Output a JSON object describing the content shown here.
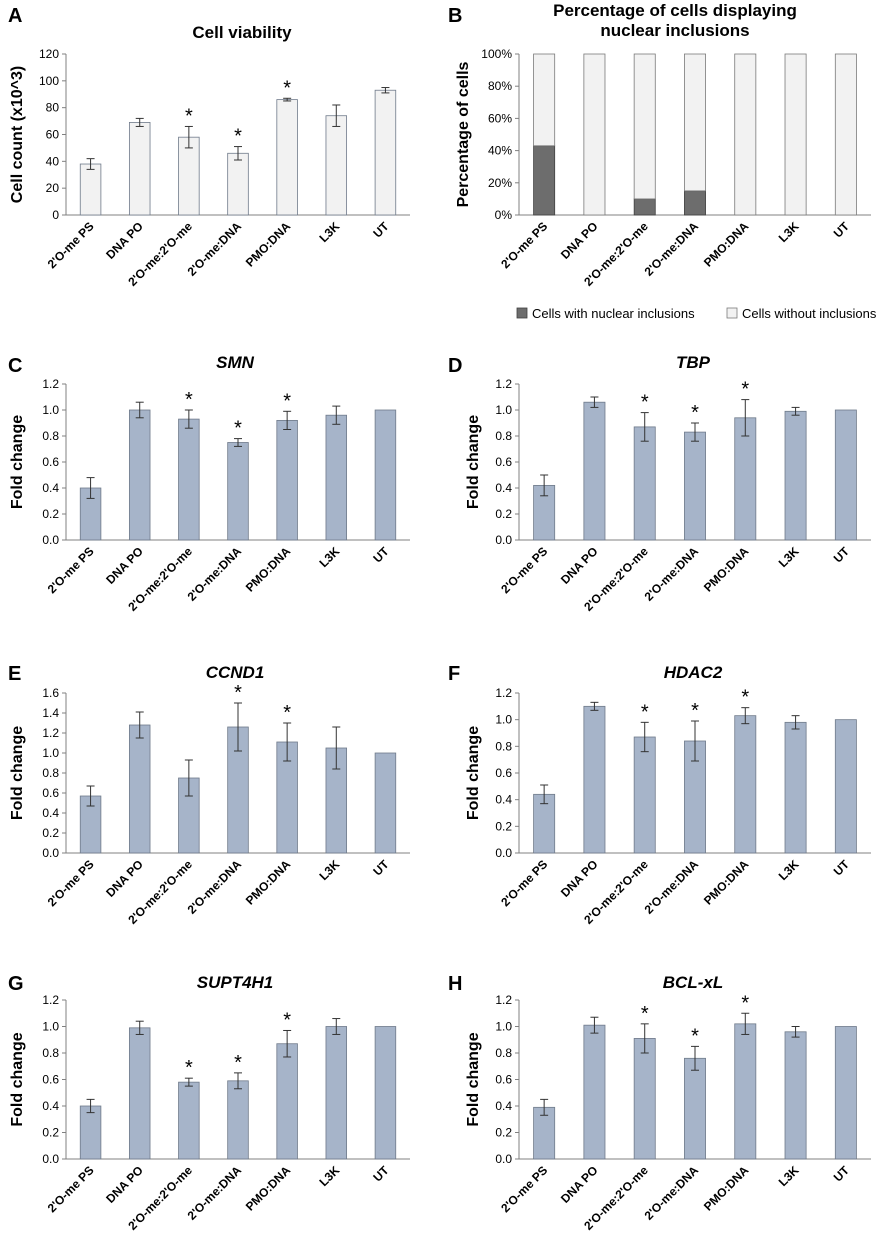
{
  "colors": {
    "bar_light": "#f2f2f2",
    "bar_blue": "#a6b4c9",
    "inclusion_dark": "#6d6d6d",
    "axis": "#808080"
  },
  "chart_data": [
    {
      "id": "A",
      "panel_label": "A",
      "type": "bar",
      "title": "Cell viability",
      "title_italic": false,
      "ylabel": "Cell count (x10^3)",
      "ylim": [
        0,
        120
      ],
      "yticks": [
        "0",
        "20",
        "40",
        "60",
        "80",
        "100",
        "120"
      ],
      "categories": [
        "2'O-me PS",
        "DNA PO",
        "2'O-me:2'O-me",
        "2'O-me:DNA",
        "PMO:DNA",
        "L3K",
        "UT"
      ],
      "values": [
        38,
        69,
        58,
        46,
        86,
        74,
        93
      ],
      "errors": [
        4,
        3,
        8,
        5,
        1,
        8,
        2
      ],
      "significant": [
        false,
        false,
        true,
        true,
        true,
        false,
        false
      ],
      "significance_marker": "*"
    },
    {
      "id": "B",
      "panel_label": "B",
      "type": "stacked-bar",
      "title": "Percentage of cells displaying nuclear inclusions",
      "title_lines": [
        "Percentage of cells displaying",
        "nuclear inclusions"
      ],
      "ylabel": "Percentage of cells",
      "ylim": [
        0,
        100
      ],
      "yticks": [
        "0%",
        "20%",
        "40%",
        "60%",
        "80%",
        "100%"
      ],
      "categories": [
        "2'O-me PS",
        "DNA PO",
        "2'O-me:2'O-me",
        "2'O-me:DNA",
        "PMO:DNA",
        "L3K",
        "UT"
      ],
      "series": [
        {
          "name": "Cells with nuclear inclusions",
          "values": [
            43,
            0,
            10,
            15,
            0,
            0,
            0
          ]
        },
        {
          "name": "Cells without inclusions",
          "values": [
            57,
            100,
            90,
            85,
            100,
            100,
            100
          ]
        }
      ],
      "legend": [
        "Cells with nuclear inclusions",
        "Cells without inclusions"
      ],
      "legend_position": "bottom"
    },
    {
      "id": "C",
      "panel_label": "C",
      "type": "bar",
      "title": "SMN",
      "title_italic": true,
      "ylabel": "Fold change",
      "ylim": [
        0,
        1.2
      ],
      "yticks": [
        "0.0",
        "0.2",
        "0.4",
        "0.6",
        "0.8",
        "1.0",
        "1.2"
      ],
      "categories": [
        "2'O-me PS",
        "DNA PO",
        "2'O-me:2'O-me",
        "2'O-me:DNA",
        "PMO:DNA",
        "L3K",
        "UT"
      ],
      "values": [
        0.4,
        1.0,
        0.93,
        0.75,
        0.92,
        0.96,
        1.0
      ],
      "errors": [
        0.08,
        0.06,
        0.07,
        0.03,
        0.07,
        0.07,
        0
      ],
      "significant": [
        false,
        false,
        true,
        true,
        true,
        false,
        false
      ],
      "significance_marker": "*"
    },
    {
      "id": "D",
      "panel_label": "D",
      "type": "bar",
      "title": "TBP",
      "title_italic": true,
      "ylabel": "Fold change",
      "ylim": [
        0,
        1.2
      ],
      "yticks": [
        "0.0",
        "0.2",
        "0.4",
        "0.6",
        "0.8",
        "1.0",
        "1.2"
      ],
      "categories": [
        "2'O-me PS",
        "DNA PO",
        "2'O-me:2'O-me",
        "2'O-me:DNA",
        "PMO:DNA",
        "L3K",
        "UT"
      ],
      "values": [
        0.42,
        1.06,
        0.87,
        0.83,
        0.94,
        0.99,
        1.0
      ],
      "errors": [
        0.08,
        0.04,
        0.11,
        0.07,
        0.14,
        0.03,
        0
      ],
      "significant": [
        false,
        false,
        true,
        true,
        true,
        false,
        false
      ],
      "significance_marker": "*"
    },
    {
      "id": "E",
      "panel_label": "E",
      "type": "bar",
      "title": "CCND1",
      "title_italic": true,
      "ylabel": "Fold change",
      "ylim": [
        0,
        1.6
      ],
      "yticks": [
        "0.0",
        "0.2",
        "0.4",
        "0.6",
        "0.8",
        "1.0",
        "1.2",
        "1.4",
        "1.6"
      ],
      "categories": [
        "2'O-me PS",
        "DNA PO",
        "2'O-me:2'O-me",
        "2'O-me:DNA",
        "PMO:DNA",
        "L3K",
        "UT"
      ],
      "values": [
        0.57,
        1.28,
        0.75,
        1.26,
        1.11,
        1.05,
        1.0
      ],
      "errors": [
        0.1,
        0.13,
        0.18,
        0.24,
        0.19,
        0.21,
        0
      ],
      "significant": [
        false,
        false,
        false,
        true,
        true,
        false,
        false
      ],
      "significance_marker": "*"
    },
    {
      "id": "F",
      "panel_label": "F",
      "type": "bar",
      "title": "HDAC2",
      "title_italic": true,
      "ylabel": "Fold change",
      "ylim": [
        0,
        1.2
      ],
      "yticks": [
        "0.0",
        "0.2",
        "0.4",
        "0.6",
        "0.8",
        "1.0",
        "1.2"
      ],
      "categories": [
        "2'O-me PS",
        "DNA PO",
        "2'O-me:2'O-me",
        "2'O-me:DNA",
        "PMO:DNA",
        "L3K",
        "UT"
      ],
      "values": [
        0.44,
        1.1,
        0.87,
        0.84,
        1.03,
        0.98,
        1.0
      ],
      "errors": [
        0.07,
        0.03,
        0.11,
        0.15,
        0.06,
        0.05,
        0
      ],
      "significant": [
        false,
        false,
        true,
        true,
        true,
        false,
        false
      ],
      "significance_marker": "*"
    },
    {
      "id": "G",
      "panel_label": "G",
      "type": "bar",
      "title": "SUPT4H1",
      "title_italic": true,
      "ylabel": "Fold change",
      "ylim": [
        0,
        1.2
      ],
      "yticks": [
        "0.0",
        "0.2",
        "0.4",
        "0.6",
        "0.8",
        "1.0",
        "1.2"
      ],
      "categories": [
        "2'O-me PS",
        "DNA PO",
        "2'O-me:2'O-me",
        "2'O-me:DNA",
        "PMO:DNA",
        "L3K",
        "UT"
      ],
      "values": [
        0.4,
        0.99,
        0.58,
        0.59,
        0.87,
        1.0,
        1.0
      ],
      "errors": [
        0.05,
        0.05,
        0.03,
        0.06,
        0.1,
        0.06,
        0
      ],
      "significant": [
        false,
        false,
        true,
        true,
        true,
        false,
        false
      ],
      "significance_marker": "*"
    },
    {
      "id": "H",
      "panel_label": "H",
      "type": "bar",
      "title": "BCL-xL",
      "title_italic": true,
      "ylabel": "Fold change",
      "ylim": [
        0,
        1.2
      ],
      "yticks": [
        "0.0",
        "0.2",
        "0.4",
        "0.6",
        "0.8",
        "1.0",
        "1.2"
      ],
      "categories": [
        "2'O-me PS",
        "DNA PO",
        "2'O-me:2'O-me",
        "2'O-me:DNA",
        "PMO:DNA",
        "L3K",
        "UT"
      ],
      "values": [
        0.39,
        1.01,
        0.91,
        0.76,
        1.02,
        0.96,
        1.0
      ],
      "errors": [
        0.06,
        0.06,
        0.11,
        0.09,
        0.08,
        0.04,
        0
      ],
      "significant": [
        false,
        false,
        true,
        true,
        true,
        false,
        false
      ],
      "significance_marker": "*"
    }
  ]
}
